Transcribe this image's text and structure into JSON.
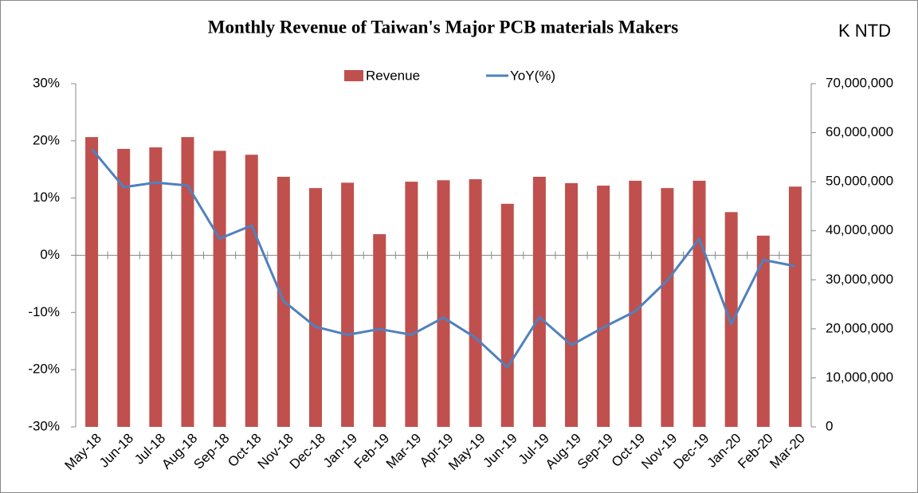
{
  "chart_data": {
    "type": "combo",
    "title": "Monthly Revenue of Taiwan's Major PCB materials Makers",
    "y2_label": "K NTD",
    "categories": [
      "May-18",
      "Jun-18",
      "Jul-18",
      "Aug-18",
      "Sep-18",
      "Oct-18",
      "Nov-18",
      "Dec-18",
      "Jan-19",
      "Feb-19",
      "Mar-19",
      "Apr-19",
      "May-19",
      "Jun-19",
      "Jul-19",
      "Aug-19",
      "Sep-19",
      "Oct-19",
      "Nov-19",
      "Dec-19",
      "Jan-20",
      "Feb-20",
      "Mar-20"
    ],
    "series": [
      {
        "name": "Revenue",
        "type": "bar",
        "axis": "y2",
        "color": "#c0504d",
        "values": [
          59100000,
          56700000,
          57000000,
          59100000,
          56300000,
          55500000,
          51000000,
          48700000,
          49800000,
          39300000,
          50000000,
          50300000,
          50500000,
          45500000,
          51000000,
          49700000,
          49200000,
          50200000,
          48700000,
          50200000,
          43800000,
          39000000,
          49000000
        ]
      },
      {
        "name": "YoY(%)",
        "type": "line",
        "axis": "y",
        "color": "#4f81bd",
        "values": [
          18.6,
          11.9,
          12.7,
          12.2,
          2.9,
          5.2,
          -8.0,
          -12.5,
          -13.9,
          -12.9,
          -13.9,
          -10.9,
          -14.4,
          -19.6,
          -10.8,
          -15.7,
          -12.6,
          -9.8,
          -4.4,
          2.9,
          -12.0,
          -0.8,
          -1.9
        ]
      }
    ],
    "ylim": [
      -30,
      30
    ],
    "yticks": [
      {
        "value": -30,
        "label": "-30%"
      },
      {
        "value": -20,
        "label": "-20%"
      },
      {
        "value": -10,
        "label": "-10%"
      },
      {
        "value": 0,
        "label": "0%"
      },
      {
        "value": 10,
        "label": "10%"
      },
      {
        "value": 20,
        "label": "20%"
      },
      {
        "value": 30,
        "label": "30%"
      }
    ],
    "y2lim": [
      0,
      70000000
    ],
    "y2ticks": [
      0,
      {
        "value": 10000000,
        "label": "10,000,000"
      },
      {
        "value": 20000000,
        "label": "20,000,000"
      },
      {
        "value": 30000000,
        "label": "30,000,000"
      },
      {
        "value": 40000000,
        "label": "40,000,000"
      },
      {
        "value": 50000000,
        "label": "50,000,000"
      },
      {
        "value": 60000000,
        "label": "60,000,000"
      },
      {
        "value": 70000000,
        "label": "70,000,000"
      }
    ],
    "legend": "top"
  }
}
